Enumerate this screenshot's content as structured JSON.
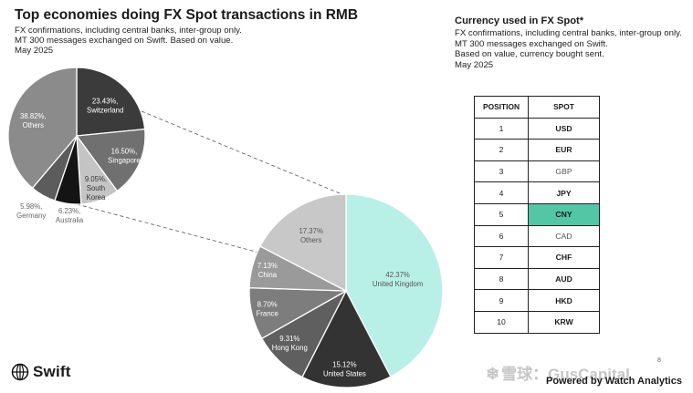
{
  "header": {
    "title": "Top economies doing FX Spot transactions in RMB",
    "subtitle_lines": [
      "FX confirmations, including central banks, inter-group only.",
      "MT 300 messages exchanged on Swift. Based on value.",
      "May 2025"
    ]
  },
  "side_panel": {
    "title": "Currency used in FX Spot*",
    "subtitle_lines": [
      "FX confirmations, including central banks, inter-group only.",
      "MT 300 messages exchanged on Swift.",
      "Based on value, currency bought sent.",
      "May 2025"
    ]
  },
  "chart_data": [
    {
      "type": "pie",
      "slices": [
        {
          "label": "Switzerland",
          "value": 23.43,
          "value_label": "23.43%,",
          "color": "#3b3b3b"
        },
        {
          "label": "Singapore",
          "value": 16.5,
          "value_label": "16.50%,",
          "color": "#707070"
        },
        {
          "label": "South Korea",
          "value": 9.05,
          "value_label": "9.05%,",
          "label_lines": [
            "South",
            "Korea"
          ],
          "color": "#c4c4c4"
        },
        {
          "label": "Australia",
          "value": 6.23,
          "value_label": "6.23%,",
          "color": "#141414"
        },
        {
          "label": "Germany",
          "value": 5.98,
          "value_label": "5.98%,",
          "color": "#5c5c5c"
        },
        {
          "label": "Others",
          "value": 38.82,
          "value_label": "38.82%,",
          "color": "#8b8b8b"
        }
      ]
    },
    {
      "type": "pie",
      "slices": [
        {
          "label": "United Kingdom",
          "value": 42.37,
          "value_label": "42.37%",
          "color": "#b8f0e8"
        },
        {
          "label": "United States",
          "value": 15.12,
          "value_label": "15.12%",
          "color": "#333333"
        },
        {
          "label": "Hong Kong",
          "value": 9.31,
          "value_label": "9.31%",
          "color": "#5f5f5f"
        },
        {
          "label": "France",
          "value": 8.7,
          "value_label": "8.70%",
          "color": "#7d7d7d"
        },
        {
          "label": "China",
          "value": 7.13,
          "value_label": "7.13%",
          "color": "#9a9a9a"
        },
        {
          "label": "Others",
          "value": 17.37,
          "value_label": "17.37%",
          "color": "#c8c8c8"
        }
      ]
    },
    {
      "type": "table",
      "columns": [
        "POSITION",
        "SPOT"
      ],
      "rows": [
        {
          "position": "1",
          "spot": "USD"
        },
        {
          "position": "2",
          "spot": "EUR"
        },
        {
          "position": "3",
          "spot": "GBP"
        },
        {
          "position": "4",
          "spot": "JPY"
        },
        {
          "position": "5",
          "spot": "CNY"
        },
        {
          "position": "6",
          "spot": "CAD"
        },
        {
          "position": "7",
          "spot": "CHF"
        },
        {
          "position": "8",
          "spot": "AUD"
        },
        {
          "position": "9",
          "spot": "HKD"
        },
        {
          "position": "10",
          "spot": "KRW"
        }
      ],
      "highlight_row": 4,
      "highlight_color": "#52c6a5"
    }
  ],
  "footer": {
    "logo_text": "Swift",
    "watermark": "雪球：GusCapital",
    "powered_by": "Powered by Watch Analytics",
    "page_number": "8"
  }
}
